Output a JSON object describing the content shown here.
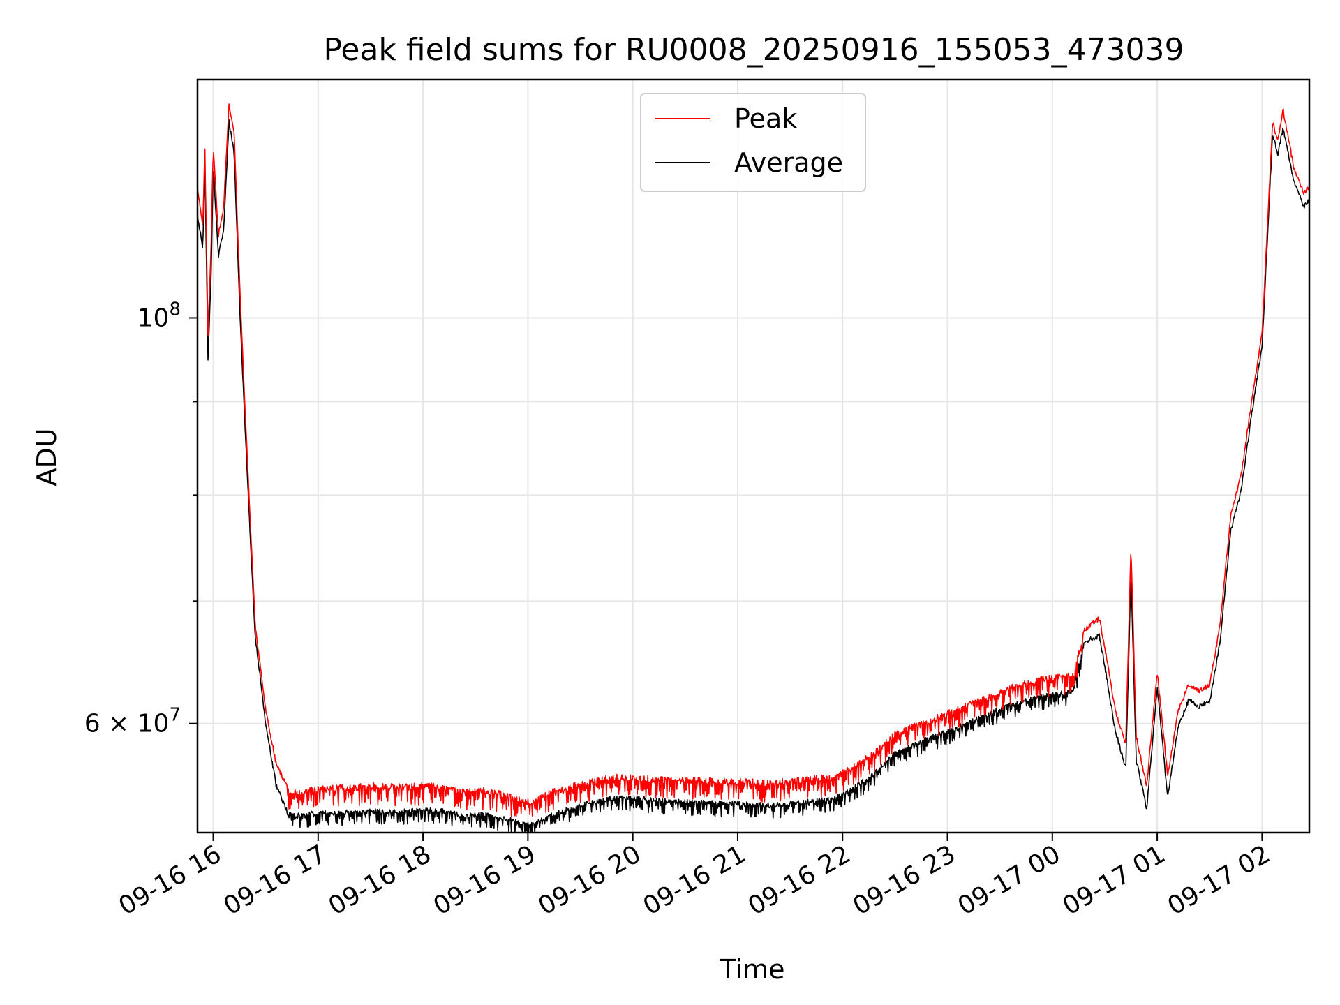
{
  "chart_data": {
    "type": "line",
    "title": "Peak field sums for RU0008_20250916_155053_473039",
    "xlabel": "Time",
    "ylabel": "ADU",
    "yscale": "log",
    "ylim": [
      52300000,
      135000000
    ],
    "xlim": [
      15.85,
      26.45
    ],
    "x_ticks": [
      {
        "x": 16,
        "label": "09-16 16"
      },
      {
        "x": 17,
        "label": "09-16 17"
      },
      {
        "x": 18,
        "label": "09-16 18"
      },
      {
        "x": 19,
        "label": "09-16 19"
      },
      {
        "x": 20,
        "label": "09-16 20"
      },
      {
        "x": 21,
        "label": "09-16 21"
      },
      {
        "x": 22,
        "label": "09-16 22"
      },
      {
        "x": 23,
        "label": "09-16 23"
      },
      {
        "x": 24,
        "label": "09-17 00"
      },
      {
        "x": 25,
        "label": "09-17 01"
      },
      {
        "x": 26,
        "label": "09-17 02"
      }
    ],
    "y_major_ticks": [
      {
        "value": 100000000,
        "base": "10",
        "exp": "8"
      },
      {
        "value": 60000000,
        "base": "6 × 10",
        "exp": "7"
      }
    ],
    "y_minor_gridlines": [
      70000000,
      80000000,
      90000000
    ],
    "grid": true,
    "legend": {
      "location": "upper center",
      "entries": [
        {
          "label": "Peak",
          "color": "#ff0000"
        },
        {
          "label": "Average",
          "color": "#000000"
        }
      ]
    },
    "series": [
      {
        "name": "Peak",
        "color": "#ff0000",
        "x": [
          15.85,
          15.9,
          15.92,
          15.95,
          15.98,
          16.0,
          16.05,
          16.1,
          16.15,
          16.2,
          16.25,
          16.3,
          16.35,
          16.4,
          16.5,
          16.6,
          16.7,
          16.8,
          16.9,
          17.0,
          17.2,
          17.5,
          17.8,
          18.0,
          18.2,
          18.4,
          18.6,
          18.8,
          19.0,
          19.05,
          19.2,
          19.5,
          19.8,
          20.0,
          20.3,
          20.6,
          21.0,
          21.3,
          21.6,
          21.9,
          22.0,
          22.3,
          22.5,
          22.8,
          23.0,
          23.3,
          23.6,
          23.9,
          24.2,
          24.3,
          24.45,
          24.5,
          24.6,
          24.7,
          24.75,
          24.8,
          24.9,
          25.0,
          25.1,
          25.2,
          25.3,
          25.4,
          25.5,
          25.6,
          25.7,
          25.8,
          25.9,
          26.0,
          26.1,
          26.15,
          26.2,
          26.3,
          26.4,
          26.45
        ],
        "values": [
          118000000,
          112000000,
          124000000,
          98000000,
          110000000,
          124000000,
          111000000,
          115000000,
          131000000,
          126000000,
          105000000,
          90000000,
          78000000,
          68000000,
          61000000,
          57000000,
          55500000,
          55200000,
          55300000,
          55500000,
          55600000,
          55700000,
          55600000,
          55700000,
          55600000,
          55300000,
          55400000,
          55000000,
          54600000,
          54500000,
          55200000,
          55800000,
          56300000,
          56300000,
          56100000,
          56100000,
          56000000,
          55900000,
          56100000,
          56300000,
          56600000,
          58000000,
          59500000,
          60400000,
          61000000,
          62000000,
          63000000,
          63700000,
          64000000,
          67500000,
          68500000,
          66000000,
          61000000,
          58500000,
          75000000,
          59000000,
          55500000,
          64000000,
          56200000,
          61000000,
          63000000,
          62500000,
          63000000,
          68000000,
          78000000,
          82000000,
          90000000,
          98000000,
          128000000,
          125000000,
          130000000,
          121000000,
          117000000,
          118000000
        ]
      },
      {
        "name": "Average",
        "color": "#000000",
        "x": [
          15.85,
          15.9,
          15.92,
          15.95,
          15.98,
          16.0,
          16.05,
          16.1,
          16.15,
          16.2,
          16.25,
          16.3,
          16.35,
          16.4,
          16.5,
          16.6,
          16.7,
          16.8,
          16.9,
          17.0,
          17.2,
          17.5,
          17.8,
          18.0,
          18.2,
          18.4,
          18.6,
          18.8,
          19.0,
          19.05,
          19.2,
          19.5,
          19.8,
          20.0,
          20.3,
          20.6,
          21.0,
          21.3,
          21.6,
          21.9,
          22.0,
          22.3,
          22.5,
          22.8,
          23.0,
          23.3,
          23.6,
          23.9,
          24.2,
          24.3,
          24.45,
          24.5,
          24.6,
          24.7,
          24.75,
          24.8,
          24.9,
          25.0,
          25.1,
          25.2,
          25.3,
          25.4,
          25.5,
          25.6,
          25.7,
          25.8,
          25.9,
          26.0,
          26.1,
          26.15,
          26.2,
          26.3,
          26.4,
          26.45
        ],
        "values": [
          114000000,
          109000000,
          121000000,
          95000000,
          106000000,
          121000000,
          108000000,
          112000000,
          128000000,
          123000000,
          102000000,
          88000000,
          76500000,
          67000000,
          60000000,
          55500000,
          53800000,
          53600000,
          53700000,
          53800000,
          53800000,
          53900000,
          53900000,
          54000000,
          53900000,
          53600000,
          53700000,
          53400000,
          53000000,
          53000000,
          53600000,
          54300000,
          54800000,
          54800000,
          54600000,
          54500000,
          54400000,
          54300000,
          54500000,
          54700000,
          55000000,
          56500000,
          58000000,
          59000000,
          59600000,
          60600000,
          61600000,
          62300000,
          62700000,
          66500000,
          67000000,
          64500000,
          59500000,
          56700000,
          72500000,
          57300000,
          53900000,
          62800000,
          54700000,
          59800000,
          61800000,
          61300000,
          61700000,
          66500000,
          76500000,
          80500000,
          88500000,
          96500000,
          126000000,
          123000000,
          127000000,
          119000000,
          115000000,
          116000000
        ]
      }
    ]
  }
}
